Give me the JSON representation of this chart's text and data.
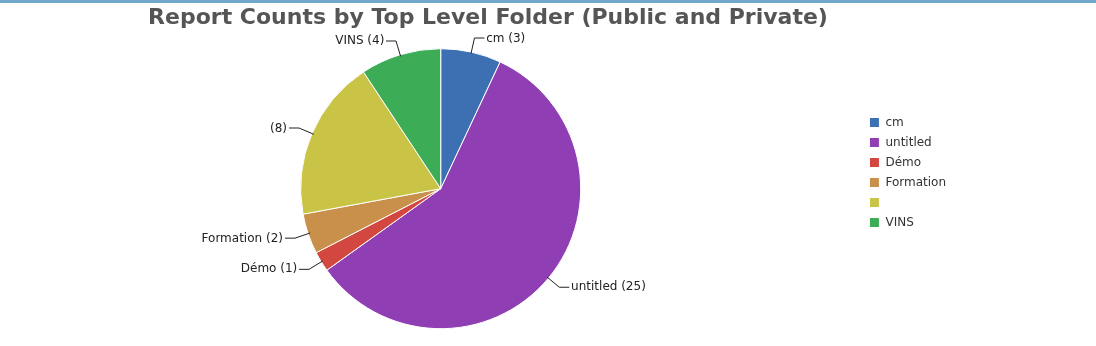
{
  "chart_data": {
    "type": "pie",
    "title": "Report Counts by Top Level Folder (Public and Private)",
    "categories": [
      "cm",
      "untitled",
      "Démo",
      "Formation",
      null,
      "VINS"
    ],
    "values": [
      3,
      25,
      1,
      2,
      8,
      4
    ],
    "colors": [
      "#3d6fb3",
      "#8f3fb3",
      "#d2473f",
      "#c8904a",
      "#c9c446",
      "#3dac57"
    ],
    "value_labels": [
      "(3)",
      "(25)",
      "(1)",
      "(2)",
      "(8)",
      "(4)"
    ],
    "legend": "right"
  }
}
